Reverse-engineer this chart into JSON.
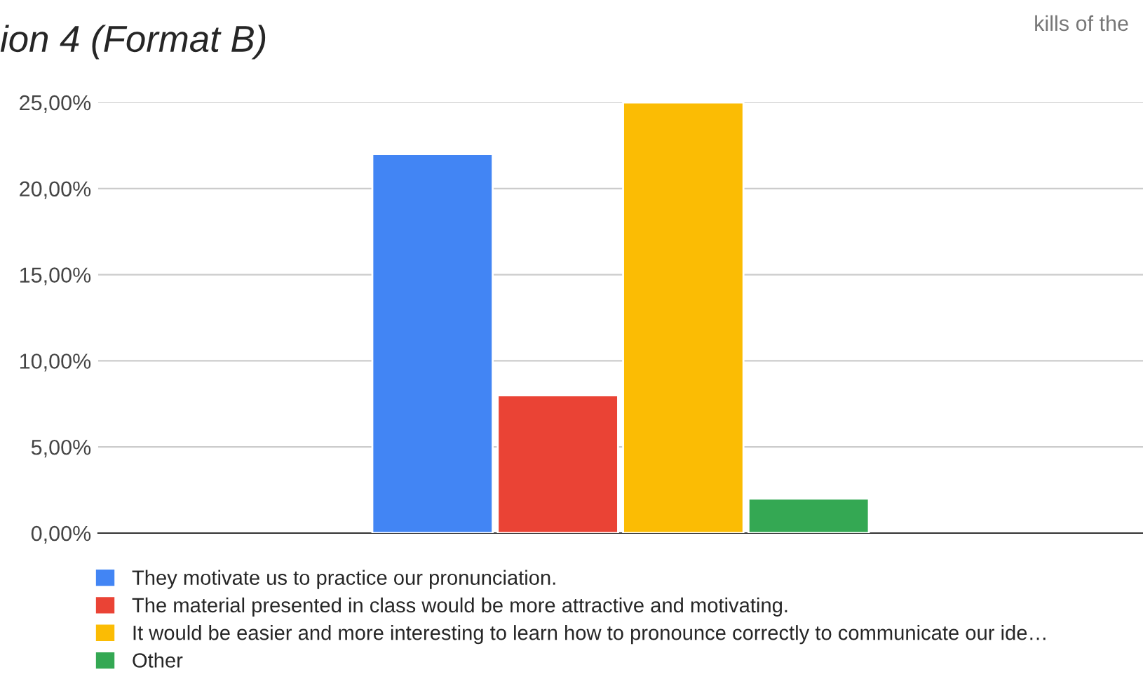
{
  "chart_data": {
    "type": "bar",
    "title": "ion 4 (Format B)",
    "annotations": [
      "kills of the"
    ],
    "categories": [
      null
    ],
    "series": [
      {
        "name": "They motivate us to practice our pronunciation.",
        "color": "#4285f4",
        "values": [
          22
        ]
      },
      {
        "name": "The material presented in class would be more attractive and motivating.",
        "color": "#ea4335",
        "values": [
          8
        ]
      },
      {
        "name": "It would be easier and more interesting to learn how to pronounce correctly to communicate our ide…",
        "color": "#fbbc04",
        "values": [
          25
        ]
      },
      {
        "name": "Other",
        "color": "#34a853",
        "values": [
          2
        ]
      }
    ],
    "ylim": [
      0,
      25
    ],
    "yticks": [
      {
        "value": 0,
        "label": "0,00%"
      },
      {
        "value": 5,
        "label": "5,00%"
      },
      {
        "value": 10,
        "label": "10,00%"
      },
      {
        "value": 15,
        "label": "15,00%"
      },
      {
        "value": 20,
        "label": "20,00%"
      },
      {
        "value": 25,
        "label": "25,00%"
      }
    ],
    "grid": "y",
    "legend": "bottom"
  }
}
